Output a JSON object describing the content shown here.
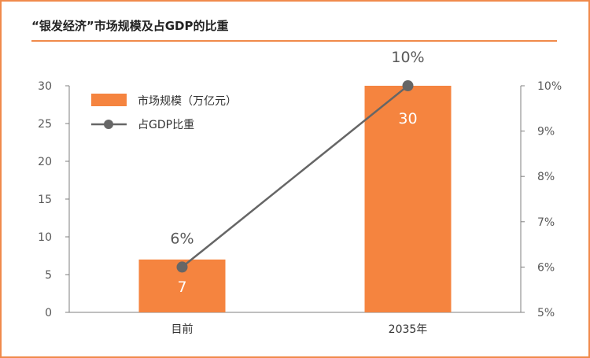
{
  "title": "“银发经济”市场规模及占GDP的比重",
  "colors": {
    "bar": "#f5843f",
    "line": "#666666",
    "axis": "#7f7f7f",
    "text": "#595959",
    "border": "#f08a4b"
  },
  "chart_data": {
    "type": "bar",
    "categories": [
      "目前",
      "2035年"
    ],
    "series": [
      {
        "name": "市场规模（万亿元）",
        "type": "bar",
        "axis": "left",
        "values": [
          7,
          30
        ],
        "value_labels": [
          "7",
          "30"
        ]
      },
      {
        "name": "占GDP比重",
        "type": "line",
        "axis": "right",
        "values": [
          6,
          10
        ],
        "value_labels": [
          "6%",
          "10%"
        ]
      }
    ],
    "y_left": {
      "range": [
        0,
        30
      ],
      "ticks": [
        "0",
        "5",
        "10",
        "15",
        "20",
        "25",
        "30"
      ]
    },
    "y_right": {
      "range": [
        5,
        10
      ],
      "ticks": [
        "5%",
        "6%",
        "7%",
        "8%",
        "9%",
        "10%"
      ]
    },
    "legend": "top-left",
    "grid": false
  }
}
